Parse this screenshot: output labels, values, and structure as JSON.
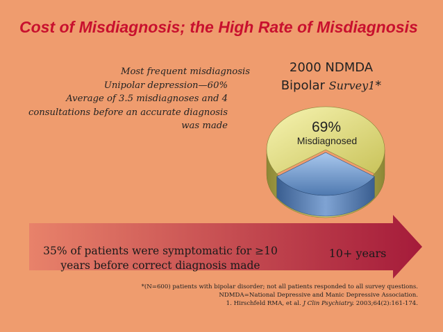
{
  "slide": {
    "title": "Cost of Misdiagnosis; the High Rate of Misdiagnosis",
    "notes": [
      "Most frequent misdiagnosis",
      "Unipolar depression—60%",
      "Average of 3.5 misdiagnoses and 4",
      "consultations before an accurate diagnosis",
      "was made"
    ],
    "survey": {
      "line1": "2000 NDMDA",
      "line2_prefix": "Bipolar ",
      "line2_italic": "Survey1",
      "line2_suffix": "*"
    },
    "pie": {
      "misdiagnosed_fraction": 0.69,
      "percent_label": "69%",
      "label": "Misdiagnosed",
      "colors": {
        "misdiagnosed": "#e9e68a",
        "correct": "#7da4d3"
      }
    },
    "arrow": {
      "text_line1": "35% of patients were symptomatic for ≥10",
      "text_line2": "years before correct diagnosis made",
      "years": "10+ years",
      "colors": {
        "start": "#e8826a",
        "end": "#a51b3a"
      }
    },
    "footnotes": [
      "*(N=600) patients with bipolar disorder; not all patients responded to all survey questions.",
      "NDMDA=National Depressive and Manic Depressive Association.",
      {
        "prefix": "1. Hirschfeld RMA, et al. ",
        "journal": "J Clin Psychiatry.",
        "suffix": " 2003;64(2):161-174."
      }
    ]
  }
}
